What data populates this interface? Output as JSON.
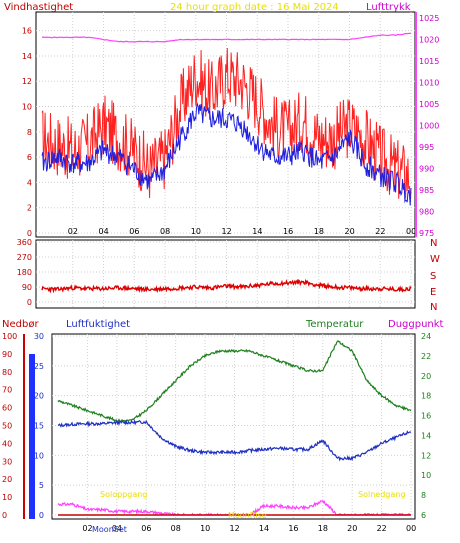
{
  "header": {
    "left_label": "Vindhastighet",
    "title": "24 hour graph date : 16 Mai 2024",
    "right_label": "Lufttrykk"
  },
  "time_ticks": [
    "02",
    "04",
    "06",
    "08",
    "10",
    "12",
    "14",
    "16",
    "18",
    "20",
    "22",
    "00"
  ],
  "wind_panel": {
    "left_ticks": [
      "0",
      "2",
      "4",
      "6",
      "8",
      "10",
      "12",
      "14",
      "16"
    ],
    "right_ticks": [
      "975",
      "980",
      "985",
      "990",
      "995",
      "1000",
      "1005",
      "1010",
      "1015",
      "1020",
      "1025"
    ]
  },
  "dir_panel": {
    "left_ticks": [
      "0",
      "90",
      "180",
      "270",
      "360"
    ],
    "compass": [
      "N",
      "W",
      "S",
      "E",
      "N"
    ]
  },
  "bottom_panel": {
    "label_rain": "Nedbør",
    "label_humidity": "Luftfuktighet",
    "label_temp": "Temperatur",
    "label_dew": "Duggpunkt",
    "rain_ticks": [
      "0",
      "10",
      "20",
      "30",
      "40",
      "50",
      "60",
      "70",
      "80",
      "90",
      "100"
    ],
    "hum_ticks": [
      "0",
      "5",
      "10",
      "15",
      "20",
      "25",
      "30"
    ],
    "temp_ticks": [
      "6",
      "8",
      "10",
      "12",
      "14",
      "16",
      "18",
      "20",
      "22",
      "24"
    ],
    "sunrise_label": "Soloppgang",
    "sunset_label": "Solnedgang",
    "moonset_label": "MoonSet",
    "moonrise_label": "MoonRise"
  },
  "colors": {
    "wind_gust": "#ff2020",
    "wind_avg": "#2020dd",
    "pressure": "#ff40ff",
    "direction": "#dd0000",
    "humidity": "#2030c0",
    "temperature": "#208020",
    "dewpoint": "#ff40ff",
    "rain": "#cc0000",
    "sun_label": "#e8e000",
    "grid": "#d0d0d0"
  },
  "chart_data": [
    {
      "type": "line",
      "title": "24 hour graph date : 16 Mai 2024",
      "x": [
        0,
        1,
        2,
        3,
        4,
        5,
        6,
        7,
        8,
        9,
        10,
        11,
        12,
        13,
        14,
        15,
        16,
        17,
        18,
        19,
        20,
        21,
        22,
        23,
        24
      ],
      "ylim_left": [
        0,
        17
      ],
      "ylim_right": [
        975,
        1025
      ],
      "series": [
        {
          "name": "Vindhastighet",
          "axis": "left",
          "values": [
            7.5,
            7.0,
            6.5,
            7.0,
            8.5,
            7.5,
            6.5,
            5.0,
            6.0,
            10.0,
            12.5,
            11.0,
            12.5,
            12.0,
            10.5,
            8.5,
            8.0,
            9.0,
            7.5,
            7.5,
            8.5,
            7.5,
            6.0,
            5.0,
            4.5
          ]
        },
        {
          "axis": "left",
          "values": [
            5.5,
            6.0,
            5.5,
            5.5,
            6.5,
            6.0,
            5.0,
            4.0,
            5.0,
            7.5,
            9.5,
            9.0,
            9.0,
            8.5,
            7.0,
            6.0,
            6.0,
            6.5,
            5.5,
            6.0,
            7.5,
            5.5,
            4.5,
            4.0,
            3.0
          ]
        },
        {
          "name": "Lufttrykk",
          "axis": "right",
          "values": [
            1020.5,
            1020.5,
            1020.5,
            1020.5,
            1020.0,
            1019.5,
            1019.5,
            1019.5,
            1019.5,
            1020.0,
            1020.0,
            1020.0,
            1020.0,
            1020.0,
            1020.0,
            1020.0,
            1020.0,
            1020.0,
            1020.0,
            1020.0,
            1020.0,
            1020.5,
            1021.0,
            1021.0,
            1021.5
          ]
        }
      ]
    },
    {
      "type": "line",
      "ylim": [
        0,
        360
      ],
      "x": [
        0,
        1,
        2,
        3,
        4,
        5,
        6,
        7,
        8,
        9,
        10,
        11,
        12,
        13,
        14,
        15,
        16,
        17,
        18,
        19,
        20,
        21,
        22,
        23,
        24
      ],
      "series": [
        {
          "values": [
            80,
            75,
            85,
            80,
            80,
            85,
            80,
            75,
            80,
            85,
            90,
            85,
            95,
            90,
            100,
            110,
            115,
            120,
            100,
            90,
            85,
            80,
            80,
            75,
            80
          ]
        }
      ]
    },
    {
      "type": "line",
      "x": [
        0,
        1,
        2,
        3,
        4,
        5,
        6,
        7,
        8,
        9,
        10,
        11,
        12,
        13,
        14,
        15,
        16,
        17,
        18,
        19,
        20,
        21,
        22,
        23,
        24
      ],
      "ylim_rain": [
        0,
        100
      ],
      "ylim_humidity": [
        0,
        30
      ],
      "ylim_temp": [
        6,
        24
      ],
      "series": [
        {
          "name": "Temperatur",
          "axis": "temp",
          "values": [
            17.5,
            17.0,
            16.5,
            16.0,
            15.5,
            15.5,
            16.5,
            18.0,
            19.5,
            21.0,
            22.0,
            22.5,
            22.5,
            22.5,
            22.0,
            21.5,
            21.0,
            20.5,
            20.5,
            23.5,
            22.5,
            19.5,
            18.0,
            17.0,
            16.5
          ]
        },
        {
          "name": "Luftfuktighet",
          "axis": "humidity",
          "values": [
            15.0,
            15.2,
            15.3,
            15.3,
            15.5,
            15.5,
            15.6,
            13.0,
            11.5,
            10.8,
            10.5,
            10.5,
            10.5,
            10.8,
            11.0,
            11.2,
            11.0,
            11.0,
            12.5,
            9.5,
            9.5,
            10.5,
            12.0,
            13.0,
            14.0
          ]
        },
        {
          "name": "Duggpunkt",
          "axis": "rain",
          "values": [
            6,
            6,
            3,
            3,
            2,
            2,
            2,
            1,
            0,
            0,
            0,
            0,
            0,
            0,
            5,
            5,
            4,
            4,
            8,
            0,
            0,
            0,
            0,
            0,
            0
          ]
        },
        {
          "name": "Nedbør",
          "axis": "rain",
          "values": [
            0,
            0,
            0,
            0,
            0,
            0,
            0,
            0,
            0,
            0,
            0,
            0,
            0,
            0,
            0,
            0,
            0,
            0,
            0,
            0,
            0,
            0,
            0,
            0,
            0
          ]
        }
      ]
    }
  ]
}
